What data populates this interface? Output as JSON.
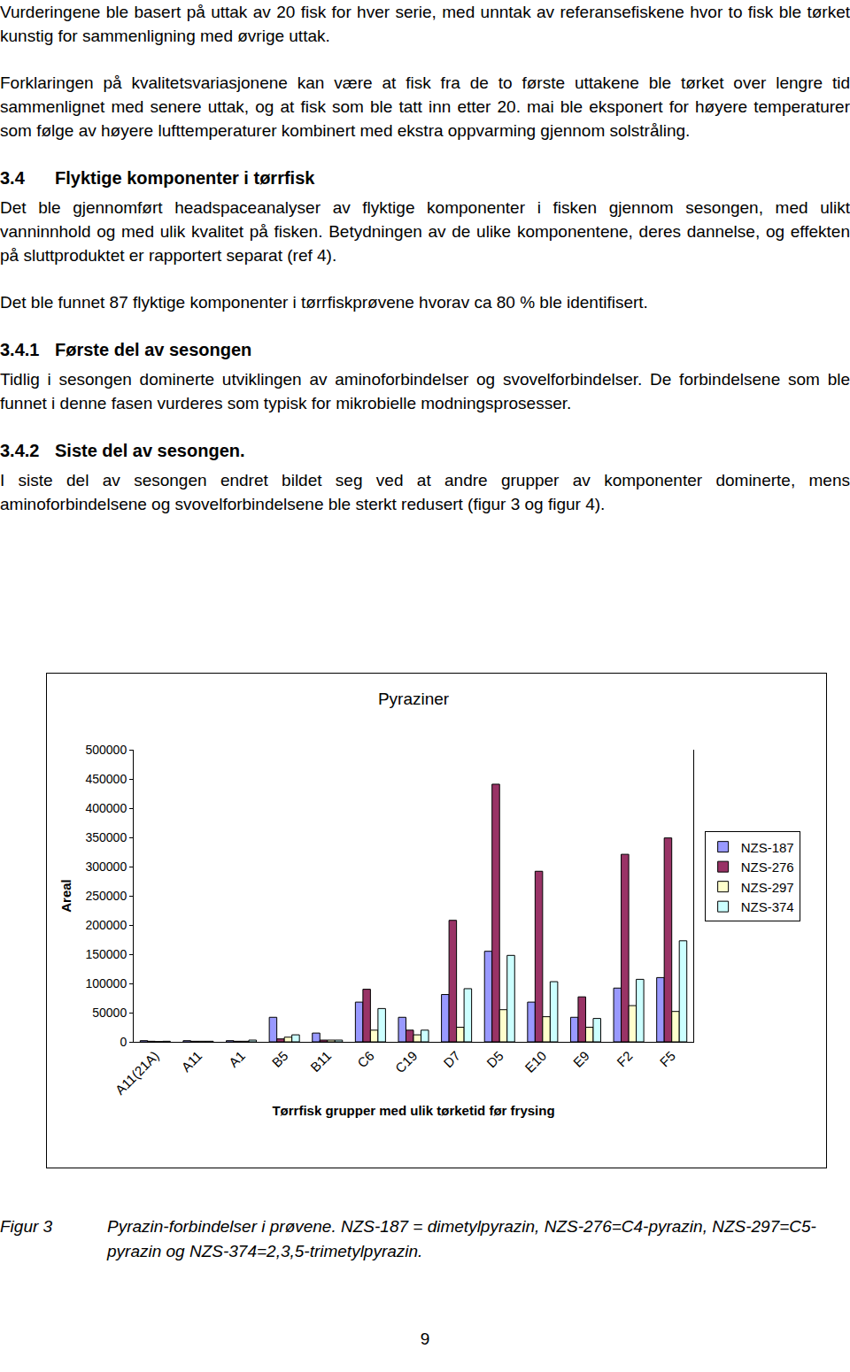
{
  "blocks": [
    {
      "kind": "p",
      "text": "Vurderingene ble basert på uttak av 20 fisk for hver serie, med unntak av referansefiskene hvor to fisk ble tørket kunstig for sammenligning med øvrige uttak."
    },
    {
      "kind": "p",
      "text": "Forklaringen på kvalitetsvariasjonene kan være at fisk fra de to første uttakene ble tørket over lengre tid sammenlignet med senere uttak, og at fisk som ble tatt inn etter 20. mai ble eksponert for høyere temperaturer som følge av høyere lufttemperaturer kombinert med ekstra oppvarming gjennom solstråling."
    },
    {
      "kind": "h",
      "number": "3.4",
      "text": "Flyktige komponenter i tørrfisk"
    },
    {
      "kind": "p",
      "text": "Det ble gjennomført headspaceanalyser av flyktige komponenter i fisken gjennom sesongen, med ulikt vanninnhold og med ulik kvalitet på fisken. Betydningen av de ulike komponentene, deres dannelse, og effekten på sluttproduktet er rapportert separat (ref 4)."
    },
    {
      "kind": "p",
      "text": "Det ble funnet 87 flyktige komponenter i tørrfiskprøvene hvorav ca 80 % ble identifisert."
    },
    {
      "kind": "h",
      "number": "3.4.1",
      "text": "Første del av sesongen"
    },
    {
      "kind": "p",
      "text": "Tidlig i sesongen dominerte utviklingen av aminoforbindelser og svovelforbindelser. De forbindelsene som ble funnet i denne fasen vurderes som typisk for mikrobielle modningsprosesser."
    },
    {
      "kind": "h",
      "number": "3.4.2",
      "text": "Siste del av sesongen."
    },
    {
      "kind": "p",
      "text": "I siste del av sesongen endret bildet seg ved at andre grupper av komponenter dominerte, mens aminoforbindelsene og svovelforbindelsene ble sterkt redusert (figur 3 og figur 4)."
    }
  ],
  "chart_data": {
    "type": "bar",
    "title": "Pyraziner",
    "x_label": "Tørrfisk grupper med ulik tørketid før frysing",
    "y_label": "Areal",
    "categories": [
      "A11(21A)",
      "A11",
      "A1",
      "B5",
      "B11",
      "C6",
      "C19",
      "D7",
      "D5",
      "E10",
      "E9",
      "F2",
      "F5"
    ],
    "series": [
      {
        "name": "NZS-187",
        "color": "#9999ff",
        "values": [
          2000,
          2000,
          2000,
          42000,
          15000,
          68000,
          42000,
          81000,
          155000,
          68000,
          42000,
          92000,
          110000
        ]
      },
      {
        "name": "NZS-276",
        "color": "#993366",
        "values": [
          1000,
          1000,
          1000,
          5000,
          3000,
          90000,
          20000,
          208000,
          441000,
          292000,
          77000,
          321000,
          349000
        ]
      },
      {
        "name": "NZS-297",
        "color": "#ffffcc",
        "values": [
          500,
          1000,
          1000,
          8000,
          3000,
          20000,
          12000,
          25000,
          55000,
          43000,
          25000,
          62000,
          52000
        ]
      },
      {
        "name": "NZS-374",
        "color": "#ccffff",
        "values": [
          1000,
          1000,
          3000,
          12000,
          3000,
          57000,
          20000,
          91000,
          148000,
          103000,
          40000,
          107000,
          173000
        ]
      }
    ],
    "ylim": [
      0,
      500000
    ],
    "yticks": [
      0,
      50000,
      100000,
      150000,
      200000,
      250000,
      300000,
      350000,
      400000,
      450000,
      500000
    ],
    "grid": false,
    "legend": "right"
  },
  "caption": {
    "label": "Figur 3",
    "text": "Pyrazin-forbindelser i prøvene. NZS-187 = dimetylpyrazin, NZS-276=C4-pyrazin, NZS-297=C5-pyrazin og NZS-374=2,3,5-trimetylpyrazin."
  },
  "page_number": "9"
}
